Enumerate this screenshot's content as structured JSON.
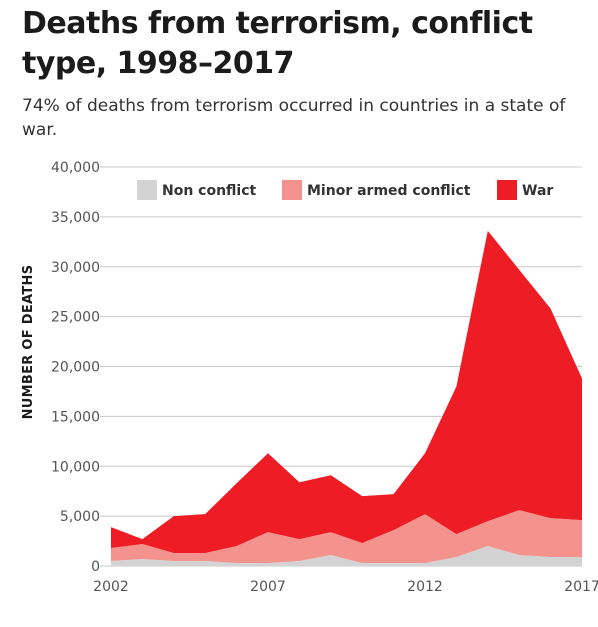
{
  "title": "Deaths from terrorism, conflict type, 1998–2017",
  "subtitle": "74% of deaths from terrorism occurred in countries in a state of war.",
  "chart_data": {
    "type": "area",
    "stacked": true,
    "ylabel": "NUMBER OF DEATHS",
    "xlabel": "",
    "ylim": [
      0,
      40000
    ],
    "y_ticks": [
      0,
      5000,
      10000,
      15000,
      20000,
      25000,
      30000,
      35000,
      40000
    ],
    "y_tick_labels": [
      "0",
      "5,000",
      "10,000",
      "15,000",
      "20,000",
      "25,000",
      "30,000",
      "35,000",
      "40,000"
    ],
    "x_ticks": [
      2002,
      2007,
      2012,
      2017
    ],
    "x_tick_labels": [
      "2002",
      "2007",
      "2012",
      "2017"
    ],
    "grid": "horizontal",
    "legend_position": "top",
    "x": [
      2002,
      2003,
      2004,
      2005,
      2006,
      2007,
      2008,
      2009,
      2010,
      2011,
      2012,
      2013,
      2014,
      2015,
      2016,
      2017
    ],
    "series": [
      {
        "name": "Non conflict",
        "color": "#d3d3d3",
        "values": [
          500,
          700,
          500,
          500,
          300,
          300,
          500,
          1100,
          300,
          300,
          300,
          900,
          2000,
          1100,
          900,
          900
        ]
      },
      {
        "name": "Minor armed conflict",
        "color": "#f4938d",
        "values": [
          1300,
          1500,
          800,
          800,
          1700,
          3100,
          2200,
          2300,
          2000,
          3300,
          4900,
          2300,
          2500,
          4500,
          3900,
          3700
        ]
      },
      {
        "name": "War",
        "color": "#ee1c25",
        "values": [
          2100,
          500,
          3700,
          3900,
          6300,
          7900,
          5700,
          5700,
          4700,
          3600,
          6100,
          14800,
          29100,
          24100,
          21000,
          14200
        ]
      }
    ]
  }
}
